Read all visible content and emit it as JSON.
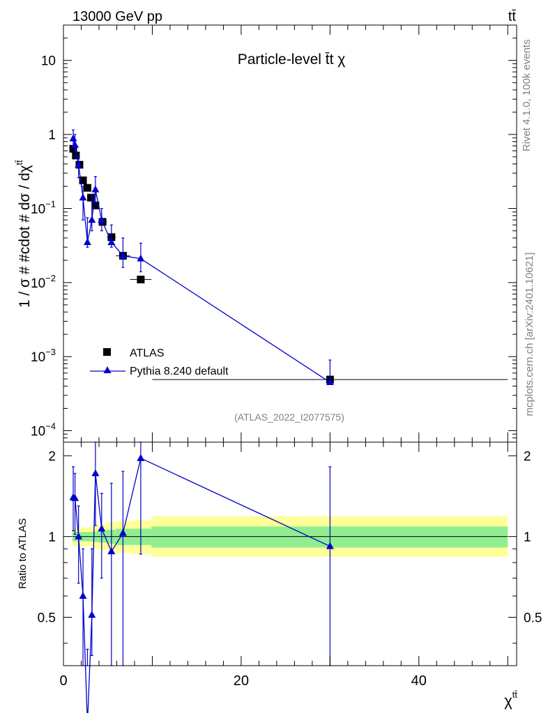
{
  "header": {
    "energy_label": "13000 GeV pp",
    "process_label": "tt̄"
  },
  "side_labels": {
    "rivet": "Rivet 4.1.0,  100k events",
    "mcplots": "mcplots.cern.ch [arXiv:2401.10621]"
  },
  "colors": {
    "mc_line": "#0000cc",
    "data_marker": "#000000",
    "band_inner": "#90ee90",
    "band_outer": "#ffff99"
  },
  "chart_data": [
    {
      "type": "scatter",
      "panel": "main",
      "title": "Particle-level t̄t χ",
      "ylabel": "1 / σ # #cdot # dσ / dχ",
      "ylabel_sup": "tt̄",
      "yscale": "log",
      "ylim": [
        7e-05,
        30
      ],
      "xlim": [
        0,
        51
      ],
      "y_tick_labels": [
        {
          "v": 10,
          "base": "10",
          "exp": ""
        },
        {
          "v": 1,
          "base": "1",
          "exp": ""
        },
        {
          "v": 0.1,
          "base": "10",
          "exp": "−1"
        },
        {
          "v": 0.01,
          "base": "10",
          "exp": "−2"
        },
        {
          "v": 0.001,
          "base": "10",
          "exp": "−3"
        },
        {
          "v": 0.0001,
          "base": "10",
          "exp": "−4"
        }
      ],
      "watermark": "(ATLAS_2022_I2077575)",
      "legend": {
        "position": "bottom-left",
        "entries": [
          "ATLAS",
          "Pythia 8.240 default"
        ]
      },
      "series": [
        {
          "name": "ATLAS",
          "marker": "square",
          "x": [
            1.1,
            1.4,
            1.8,
            2.2,
            2.7,
            3.1,
            3.6,
            4.4,
            5.4,
            6.7,
            8.7,
            30.0
          ],
          "xerr": [
            0.1,
            0.2,
            0.2,
            0.2,
            0.3,
            0.2,
            0.3,
            0.5,
            0.5,
            0.8,
            1.2,
            20.0
          ],
          "y": [
            0.64,
            0.52,
            0.39,
            0.24,
            0.19,
            0.14,
            0.11,
            0.066,
            0.041,
            0.023,
            0.011,
            0.00049
          ]
        },
        {
          "name": "Pythia 8.240 default",
          "marker": "triangle",
          "x": [
            1.1,
            1.3,
            1.7,
            2.2,
            2.7,
            3.2,
            3.6,
            4.3,
            5.4,
            6.7,
            8.7,
            30.0
          ],
          "y": [
            0.88,
            0.72,
            0.39,
            0.14,
            0.035,
            0.07,
            0.18,
            0.07,
            0.035,
            0.023,
            0.021,
            0.00045
          ],
          "yerr_lo": [
            0.68,
            0.5,
            0.26,
            0.07,
            0.03,
            0.05,
            0.12,
            0.05,
            0.03,
            0.016,
            0.014,
            0.00045
          ],
          "yerr_hi": [
            1.15,
            1.0,
            0.5,
            0.2,
            0.075,
            0.15,
            0.27,
            0.1,
            0.06,
            0.04,
            0.034,
            0.0009
          ]
        }
      ]
    },
    {
      "type": "line",
      "panel": "ratio",
      "ylabel": "Ratio to ATLAS",
      "xlabel": "χ",
      "xlabel_sup": "tt̄",
      "xlim": [
        0,
        51
      ],
      "ylim": [
        0.33,
        2.25
      ],
      "x_ticks": [
        0,
        20,
        40
      ],
      "x_tick_labels": [
        "0",
        "20",
        "40"
      ],
      "y_ticks": [
        0.5,
        1,
        2
      ],
      "y_tick_labels": [
        "0.5",
        "1",
        "2"
      ],
      "bands": [
        {
          "x0": 1.0,
          "x1": 3.3,
          "inner": [
            0.96,
            1.04
          ],
          "outer": [
            0.92,
            1.08
          ]
        },
        {
          "x0": 3.3,
          "x1": 3.9,
          "inner": [
            0.955,
            1.045
          ],
          "outer": [
            0.9,
            1.1
          ]
        },
        {
          "x0": 3.9,
          "x1": 4.9,
          "inner": [
            0.95,
            1.05
          ],
          "outer": [
            0.89,
            1.11
          ]
        },
        {
          "x0": 4.9,
          "x1": 5.9,
          "inner": [
            0.94,
            1.06
          ],
          "outer": [
            0.88,
            1.13
          ]
        },
        {
          "x0": 5.9,
          "x1": 7.5,
          "inner": [
            0.93,
            1.07
          ],
          "outer": [
            0.87,
            1.14
          ]
        },
        {
          "x0": 7.5,
          "x1": 9.9,
          "inner": [
            0.93,
            1.07
          ],
          "outer": [
            0.86,
            1.15
          ]
        },
        {
          "x0": 9.9,
          "x1": 50.0,
          "inner": [
            0.91,
            1.09
          ],
          "outer": [
            0.84,
            1.19
          ]
        }
      ],
      "series": [
        {
          "name": "Pythia 8.240 default",
          "x": [
            1.1,
            1.3,
            1.7,
            2.2,
            2.7,
            3.2,
            3.6,
            4.3,
            5.4,
            6.7,
            8.7,
            30.0
          ],
          "y": [
            1.4,
            1.39,
            1.0,
            0.6,
            0.2,
            0.51,
            1.72,
            1.07,
            0.88,
            1.03,
            1.96,
            0.92
          ],
          "yerr_lo": [
            1.05,
            1.02,
            0.67,
            0.3,
            0.15,
            0.36,
            1.1,
            0.7,
            0.2,
            0.3,
            0.86,
            0.2
          ],
          "yerr_hi": [
            1.82,
            1.72,
            1.3,
            0.9,
            0.38,
            0.9,
            2.38,
            1.45,
            1.58,
            1.75,
            2.5,
            1.82
          ]
        }
      ]
    }
  ]
}
